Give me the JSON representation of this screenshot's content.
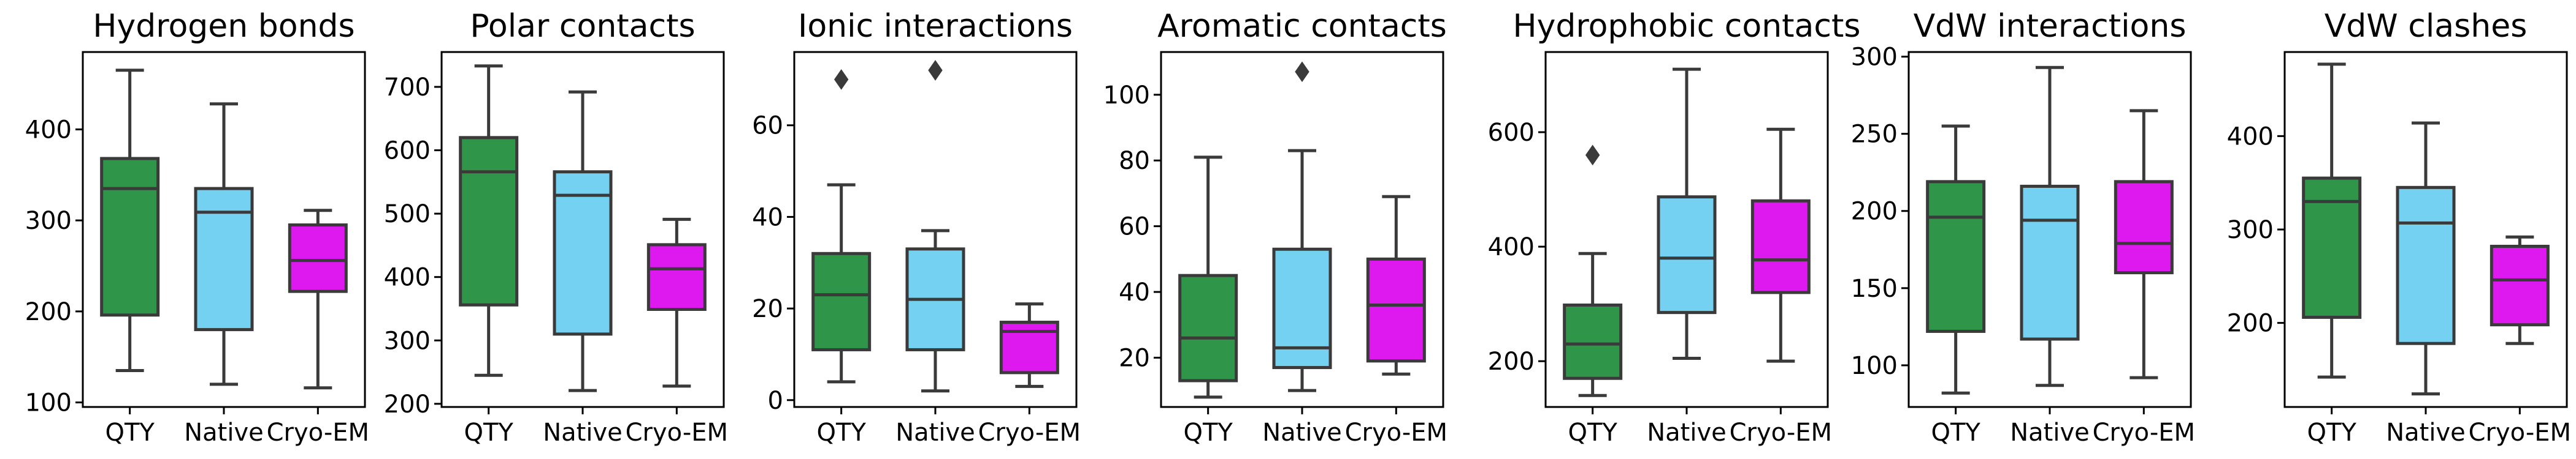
{
  "figure_title": "",
  "colors": {
    "QTY": "#2e9549",
    "Native": "#74d1f2",
    "Cryo-EM": "#dd19ef"
  },
  "chart_data": [
    {
      "type": "box",
      "title": "Hydrogen bonds",
      "categories": [
        "QTY",
        "Native",
        "Cryo-EM"
      ],
      "ylim": [
        95,
        485
      ],
      "yticks": [
        100,
        200,
        300,
        400
      ],
      "boxes": [
        {
          "category": "QTY",
          "min": 135,
          "q1": 196,
          "median": 335,
          "q3": 368,
          "max": 465,
          "outliers": []
        },
        {
          "category": "Native",
          "min": 120,
          "q1": 180,
          "median": 309,
          "q3": 335,
          "max": 428,
          "outliers": []
        },
        {
          "category": "Cryo-EM",
          "min": 116,
          "q1": 222,
          "median": 256,
          "q3": 295,
          "max": 311,
          "outliers": []
        }
      ]
    },
    {
      "type": "box",
      "title": "Polar contacts",
      "categories": [
        "QTY",
        "Native",
        "Cryo-EM"
      ],
      "ylim": [
        195,
        755
      ],
      "yticks": [
        200,
        300,
        400,
        500,
        600,
        700
      ],
      "boxes": [
        {
          "category": "QTY",
          "min": 245,
          "q1": 356,
          "median": 566,
          "q3": 620,
          "max": 733,
          "outliers": []
        },
        {
          "category": "Native",
          "min": 221,
          "q1": 310,
          "median": 529,
          "q3": 566,
          "max": 692,
          "outliers": []
        },
        {
          "category": "Cryo-EM",
          "min": 228,
          "q1": 349,
          "median": 413,
          "q3": 451,
          "max": 491,
          "outliers": []
        }
      ]
    },
    {
      "type": "box",
      "title": "Ionic interactions",
      "categories": [
        "QTY",
        "Native",
        "Cryo-EM"
      ],
      "ylim": [
        -1.5,
        76
      ],
      "yticks": [
        0,
        20,
        40,
        60
      ],
      "boxes": [
        {
          "category": "QTY",
          "min": 4,
          "q1": 11,
          "median": 23,
          "q3": 32,
          "max": 47,
          "outliers": [
            70
          ]
        },
        {
          "category": "Native",
          "min": 2,
          "q1": 11,
          "median": 22,
          "q3": 33,
          "max": 37,
          "outliers": [
            72
          ]
        },
        {
          "category": "Cryo-EM",
          "min": 3,
          "q1": 6,
          "median": 15,
          "q3": 17,
          "max": 21,
          "outliers": []
        }
      ]
    },
    {
      "type": "box",
      "title": "Aromatic contacts",
      "categories": [
        "QTY",
        "Native",
        "Cryo-EM"
      ],
      "ylim": [
        5,
        113
      ],
      "yticks": [
        20,
        40,
        60,
        80,
        100
      ],
      "boxes": [
        {
          "category": "QTY",
          "min": 8,
          "q1": 13,
          "median": 26,
          "q3": 45,
          "max": 81,
          "outliers": []
        },
        {
          "category": "Native",
          "min": 10,
          "q1": 17,
          "median": 23,
          "q3": 53,
          "max": 83,
          "outliers": [
            107
          ]
        },
        {
          "category": "Cryo-EM",
          "min": 15,
          "q1": 19,
          "median": 36,
          "q3": 50,
          "max": 69,
          "outliers": []
        }
      ]
    },
    {
      "type": "box",
      "title": "Hydrophobic contacts",
      "categories": [
        "QTY",
        "Native",
        "Cryo-EM"
      ],
      "ylim": [
        120,
        740
      ],
      "yticks": [
        200,
        400,
        600
      ],
      "boxes": [
        {
          "category": "QTY",
          "min": 140,
          "q1": 170,
          "median": 230,
          "q3": 298,
          "max": 388,
          "outliers": [
            560
          ]
        },
        {
          "category": "Native",
          "min": 205,
          "q1": 285,
          "median": 380,
          "q3": 487,
          "max": 710,
          "outliers": []
        },
        {
          "category": "Cryo-EM",
          "min": 200,
          "q1": 320,
          "median": 377,
          "q3": 480,
          "max": 605,
          "outliers": []
        }
      ]
    },
    {
      "type": "box",
      "title": "VdW interactions",
      "categories": [
        "QTY",
        "Native",
        "Cryo-EM"
      ],
      "ylim": [
        73,
        303
      ],
      "yticks": [
        100,
        150,
        200,
        250,
        300
      ],
      "boxes": [
        {
          "category": "QTY",
          "min": 82,
          "q1": 122,
          "median": 196,
          "q3": 219,
          "max": 255,
          "outliers": []
        },
        {
          "category": "Native",
          "min": 87,
          "q1": 117,
          "median": 194,
          "q3": 216,
          "max": 293,
          "outliers": []
        },
        {
          "category": "Cryo-EM",
          "min": 92,
          "q1": 160,
          "median": 179,
          "q3": 219,
          "max": 265,
          "outliers": []
        }
      ]
    },
    {
      "type": "box",
      "title": "VdW clashes",
      "categories": [
        "QTY",
        "Native",
        "Cryo-EM"
      ],
      "ylim": [
        110,
        490
      ],
      "yticks": [
        200,
        300,
        400
      ],
      "boxes": [
        {
          "category": "QTY",
          "min": 142,
          "q1": 206,
          "median": 330,
          "q3": 355,
          "max": 477,
          "outliers": []
        },
        {
          "category": "Native",
          "min": 124,
          "q1": 178,
          "median": 307,
          "q3": 345,
          "max": 414,
          "outliers": []
        },
        {
          "category": "Cryo-EM",
          "min": 178,
          "q1": 198,
          "median": 246,
          "q3": 282,
          "max": 292,
          "outliers": []
        }
      ]
    }
  ]
}
